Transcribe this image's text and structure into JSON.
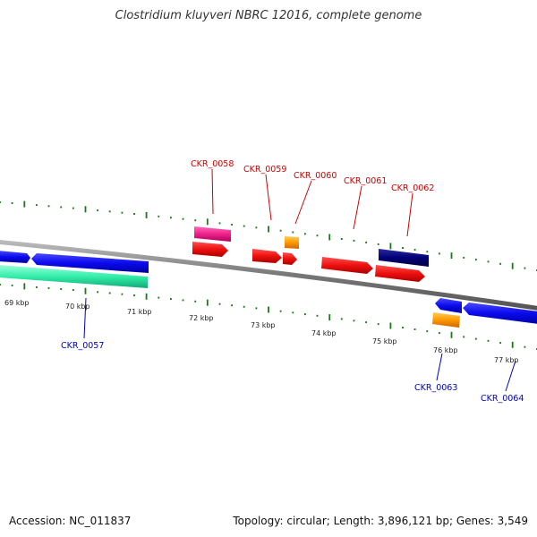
{
  "title": "Clostridium kluyveri NBRC 12016, complete genome",
  "footer": {
    "accession": "Accession: NC_011837",
    "stats": "Topology: circular; Length: 3,896,121 bp; Genes: 3,549"
  },
  "scale_labels": [
    "69 kbp",
    "70 kbp",
    "71 kbp",
    "72 kbp",
    "73 kbp",
    "74 kbp",
    "75 kbp",
    "76 kbp",
    "77 kbp"
  ],
  "gene_labels": {
    "forward": [
      "CKR_0058",
      "CKR_0059",
      "CKR_0060",
      "CKR_0061",
      "CKR_0062"
    ],
    "reverse": [
      "CKR_0057",
      "CKR_0063",
      "CKR_0064"
    ]
  },
  "colors": {
    "forward_label": "#cc0000",
    "reverse_label": "#0000bb",
    "tick": "#1a7a1a",
    "backbone": "#888888",
    "cds_forward": "#ee1111",
    "cds_reverse": "#0a0aee",
    "magenta": "#ee2288",
    "orange": "#ff9900",
    "navy": "#000077",
    "aqua": "#33eeaa"
  }
}
